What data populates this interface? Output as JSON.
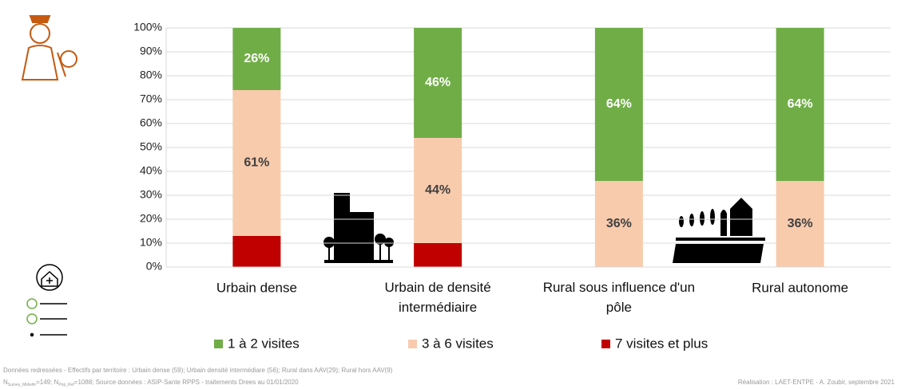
{
  "chart_data": {
    "type": "stacked_bar",
    "categories": [
      "Urbain dense",
      "Urbain de densité intermédiaire",
      "Rural sous influence d'un pôle",
      "Rural autonome"
    ],
    "series": [
      {
        "name": "1 à 2 visites",
        "color": "#70ad47",
        "values": [
          26,
          46,
          64,
          64
        ],
        "value_labels": [
          "26%",
          "46%",
          "64%",
          "64%"
        ],
        "label_color": "#ffffff"
      },
      {
        "name": "3 à 6 visites",
        "color": "#f8cbad",
        "values": [
          61,
          44,
          36,
          36
        ],
        "value_labels": [
          "61%",
          "44%",
          "36%",
          "36%"
        ],
        "label_color": "#404040"
      },
      {
        "name": "7 visites et plus",
        "color": "#c00000",
        "values": [
          13,
          10,
          0,
          0
        ]
      }
    ],
    "ylim": [
      0,
      100
    ],
    "yticks": [
      {
        "value": 0,
        "label": "0%"
      },
      {
        "value": 10,
        "label": "10%"
      },
      {
        "value": 20,
        "label": "20%"
      },
      {
        "value": 30,
        "label": "30%"
      },
      {
        "value": 40,
        "label": "40%"
      },
      {
        "value": 50,
        "label": "50%"
      },
      {
        "value": 60,
        "label": "60%"
      },
      {
        "value": 70,
        "label": "70%"
      },
      {
        "value": 80,
        "label": "80%"
      },
      {
        "value": 90,
        "label": "90%"
      },
      {
        "value": 100,
        "label": "100%"
      }
    ],
    "grid": true,
    "legend": "bottom",
    "footnote_line1": "Données redressées - Effectifs par territoire : Urbain dense (59); Urbain densité intermédiare (56); Rural dans AAV(29); Rural hors AAV(9)",
    "footnote_line2": [
      "N",
      "Survey_Midwife",
      "=149; N",
      "Pop_Ref",
      "=1088; Source données : ASIP-Sante RPPS - traitements Drees  au 01/01/2020"
    ],
    "credit": "Réalisation : LAET-ENTPE - A. Zoubir, septembre 2021"
  }
}
